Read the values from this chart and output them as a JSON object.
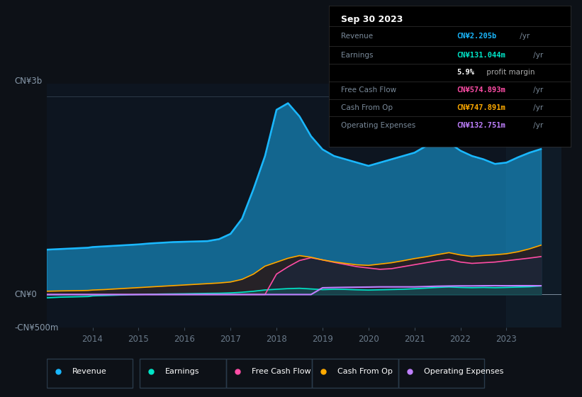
{
  "bg_color": "#0d1117",
  "plot_bg_color": "#0d1520",
  "info_box_color": "#000000",
  "ylabel_top": "CN¥3b",
  "ylabel_mid": "CN¥0",
  "ylabel_bot": "-CN¥500m",
  "xlabel_ticks": [
    "2014",
    "2015",
    "2016",
    "2017",
    "2018",
    "2019",
    "2020",
    "2021",
    "2022",
    "2023"
  ],
  "info_title": "Sep 30 2023",
  "info_rows": [
    {
      "label": "Revenue",
      "value": "CN¥2.205b",
      "suffix": " /yr",
      "color": "#1ab8ff"
    },
    {
      "label": "Earnings",
      "value": "CN¥131.044m",
      "suffix": " /yr",
      "color": "#00e5c8"
    },
    {
      "label": "",
      "value": "5.9%",
      "suffix": " profit margin",
      "color": "#ffffff",
      "bold_part": true
    },
    {
      "label": "Free Cash Flow",
      "value": "CN¥574.893m",
      "suffix": " /yr",
      "color": "#ff4da6"
    },
    {
      "label": "Cash From Op",
      "value": "CN¥747.891m",
      "suffix": " /yr",
      "color": "#ffaa00"
    },
    {
      "label": "Operating Expenses",
      "value": "CN¥132.751m",
      "suffix": " /yr",
      "color": "#bf80ff"
    }
  ],
  "legend": [
    {
      "label": "Revenue",
      "color": "#1ab8ff"
    },
    {
      "label": "Earnings",
      "color": "#00e5c8"
    },
    {
      "label": "Free Cash Flow",
      "color": "#ff4da6"
    },
    {
      "label": "Cash From Op",
      "color": "#ffaa00"
    },
    {
      "label": "Operating Expenses",
      "color": "#bf80ff"
    }
  ],
  "series": {
    "years": [
      2013.0,
      2013.3,
      2013.6,
      2013.9,
      2014.0,
      2014.25,
      2014.5,
      2014.75,
      2015.0,
      2015.25,
      2015.5,
      2015.75,
      2016.0,
      2016.25,
      2016.5,
      2016.75,
      2017.0,
      2017.25,
      2017.5,
      2017.75,
      2018.0,
      2018.25,
      2018.5,
      2018.75,
      2019.0,
      2019.25,
      2019.5,
      2019.75,
      2020.0,
      2020.25,
      2020.5,
      2020.75,
      2021.0,
      2021.25,
      2021.5,
      2021.75,
      2022.0,
      2022.25,
      2022.5,
      2022.75,
      2023.0,
      2023.25,
      2023.5,
      2023.75
    ],
    "revenue": [
      680,
      690,
      700,
      710,
      720,
      730,
      740,
      750,
      760,
      775,
      785,
      795,
      800,
      805,
      810,
      840,
      920,
      1150,
      1600,
      2100,
      2800,
      2900,
      2700,
      2400,
      2200,
      2100,
      2050,
      2000,
      1950,
      2000,
      2050,
      2100,
      2150,
      2250,
      2350,
      2300,
      2180,
      2100,
      2050,
      1980,
      2000,
      2080,
      2150,
      2205
    ],
    "earnings": [
      -50,
      -40,
      -35,
      -30,
      -20,
      -15,
      -10,
      -5,
      0,
      5,
      8,
      10,
      12,
      15,
      18,
      20,
      25,
      35,
      50,
      70,
      80,
      90,
      95,
      85,
      75,
      80,
      78,
      72,
      68,
      72,
      76,
      80,
      88,
      98,
      108,
      115,
      108,
      104,
      108,
      104,
      108,
      113,
      118,
      131
    ],
    "cash_from_op": [
      50,
      55,
      58,
      62,
      68,
      75,
      85,
      95,
      105,
      115,
      125,
      135,
      145,
      155,
      165,
      175,
      190,
      230,
      310,
      430,
      490,
      550,
      590,
      565,
      525,
      495,
      472,
      450,
      442,
      462,
      482,
      512,
      545,
      572,
      605,
      635,
      600,
      578,
      592,
      602,
      618,
      648,
      692,
      748
    ],
    "free_cash_flow": [
      0,
      0,
      0,
      0,
      0,
      0,
      0,
      0,
      0,
      0,
      0,
      0,
      0,
      0,
      0,
      0,
      0,
      0,
      0,
      0,
      310,
      420,
      515,
      558,
      525,
      488,
      455,
      422,
      402,
      382,
      392,
      422,
      452,
      482,
      512,
      532,
      492,
      472,
      482,
      492,
      512,
      532,
      552,
      575
    ],
    "operating_expenses": [
      0,
      0,
      0,
      0,
      0,
      0,
      0,
      0,
      0,
      0,
      0,
      0,
      0,
      0,
      0,
      0,
      0,
      0,
      0,
      0,
      0,
      0,
      0,
      0,
      102,
      106,
      109,
      111,
      113,
      116,
      116,
      116,
      116,
      121,
      126,
      129,
      131,
      131,
      133,
      134,
      133,
      134,
      134,
      133
    ]
  },
  "ylim": [
    -500,
    3200
  ],
  "xlim": [
    2013.0,
    2024.2
  ],
  "shaded_right_start": 2023.0,
  "y_zero": 0,
  "y_3b": 3000,
  "y_neg500": -500
}
